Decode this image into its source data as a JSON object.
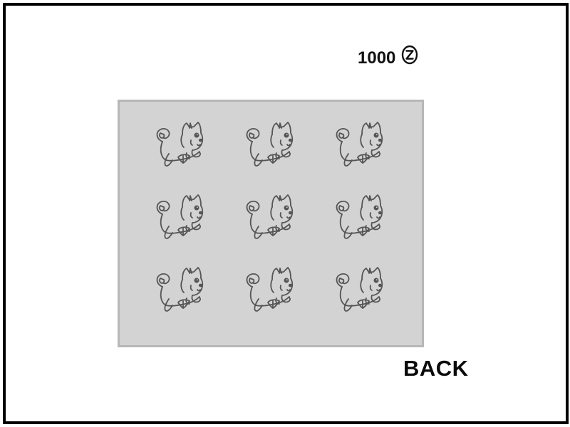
{
  "currency": {
    "amount": "1000",
    "icon": "z-coin-icon"
  },
  "grid": {
    "items": [
      {
        "icon": "dog-icon"
      },
      {
        "icon": "dog-icon"
      },
      {
        "icon": "dog-icon"
      },
      {
        "icon": "dog-icon"
      },
      {
        "icon": "dog-icon"
      },
      {
        "icon": "dog-icon"
      },
      {
        "icon": "dog-icon"
      },
      {
        "icon": "dog-icon"
      },
      {
        "icon": "dog-icon"
      }
    ]
  },
  "back_button": {
    "label": "BACK"
  },
  "colors": {
    "panel_background": "#d3d3d3",
    "panel_border": "#b7b7b7",
    "frame_border": "#000000",
    "sprite_stroke": "#555555"
  }
}
